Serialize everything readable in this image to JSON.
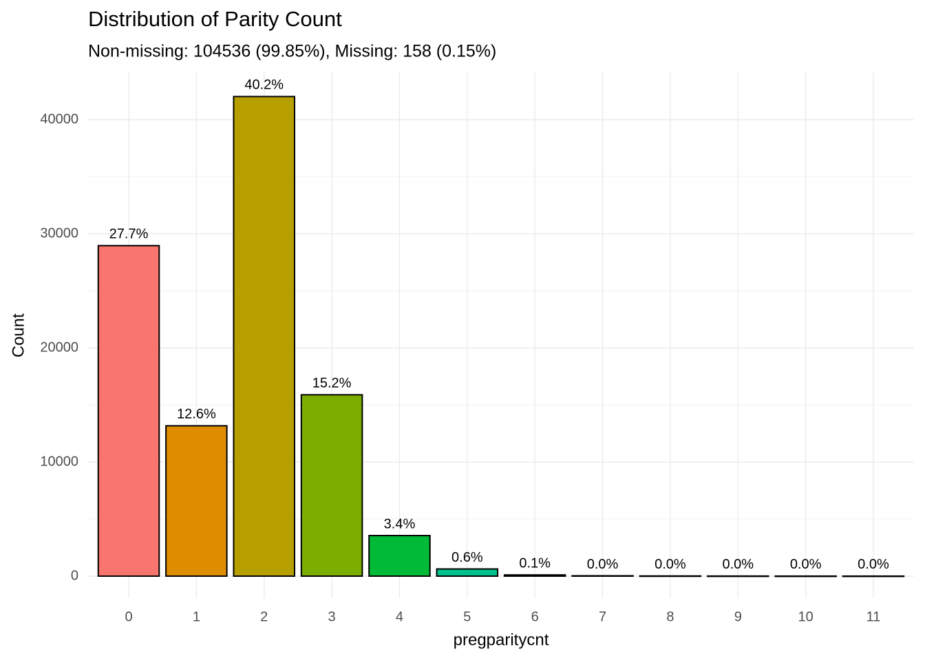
{
  "chart_data": {
    "type": "bar",
    "title": "Distribution of Parity Count",
    "subtitle": "Non-missing: 104536 (99.85%), Missing: 158 (0.15%)",
    "x_label": "pregparitycnt",
    "y_label": "Count",
    "categories": [
      "0",
      "1",
      "2",
      "3",
      "4",
      "5",
      "6",
      "7",
      "8",
      "9",
      "10",
      "11"
    ],
    "values": [
      28956,
      13172,
      42023,
      15889,
      3554,
      627,
      105,
      30,
      15,
      8,
      4,
      3
    ],
    "value_labels": [
      "27.7%",
      "12.6%",
      "40.2%",
      "15.2%",
      "3.4%",
      "0.6%",
      "0.1%",
      "0.0%",
      "0.0%",
      "0.0%",
      "0.0%",
      "0.0%"
    ],
    "colors": [
      "#F8766D",
      "#DE8C00",
      "#B79F00",
      "#7CAE00",
      "#00BA38",
      "#00C08B",
      "#00BFC4",
      "#00B4F0",
      "#619CFF",
      "#C77CFF",
      "#F564E3",
      "#FF64B0"
    ],
    "ylim": [
      -1928,
      44157
    ],
    "yticks": [
      0,
      10000,
      20000,
      30000,
      40000
    ],
    "grid": true
  }
}
